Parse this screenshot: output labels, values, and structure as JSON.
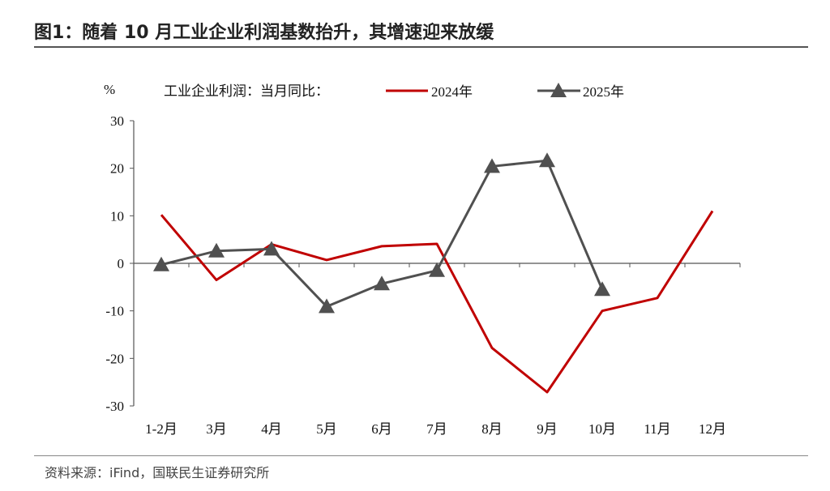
{
  "title": "图1：随着 10 月工业企业利润基数抬升，其增速迎来放缓",
  "source": "资料来源：iFind，国联民生证券研究所",
  "chart_data": {
    "type": "line",
    "ylabel": "%",
    "legend_title": "工业企业利润：当月同比：",
    "legend_position": "top",
    "ylim": [
      -30,
      30
    ],
    "yticks": [
      30,
      20,
      10,
      0,
      -10,
      -20,
      -30
    ],
    "categories": [
      "1-2月",
      "3月",
      "4月",
      "5月",
      "6月",
      "7月",
      "8月",
      "9月",
      "10月",
      "11月",
      "12月"
    ],
    "series": [
      {
        "name": "2024年",
        "color": "#c00000",
        "marker": "none",
        "values": [
          10.2,
          -3.5,
          4.0,
          0.7,
          3.6,
          4.1,
          -17.8,
          -27.1,
          -10.0,
          -7.3,
          11.0
        ]
      },
      {
        "name": "2025年",
        "color": "#505050",
        "marker": "triangle",
        "values": [
          -0.3,
          2.6,
          3.0,
          -9.1,
          -4.3,
          -1.5,
          20.4,
          21.6,
          -5.5,
          null,
          null
        ]
      }
    ]
  }
}
